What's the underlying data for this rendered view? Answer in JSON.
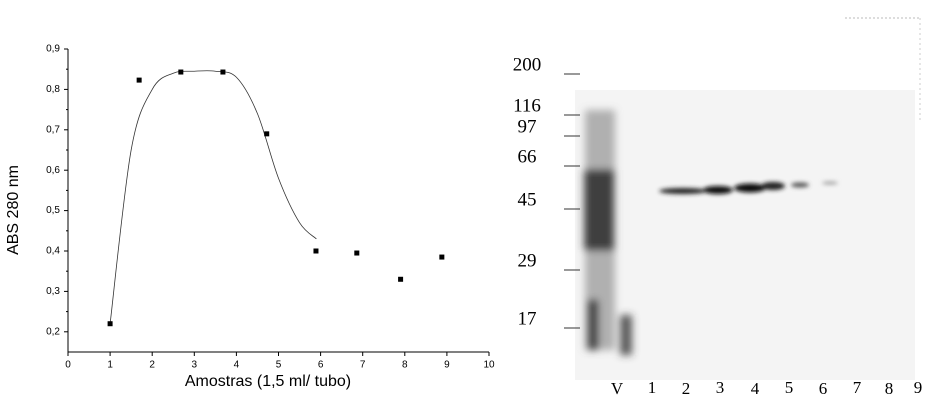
{
  "chart_data": {
    "type": "scatter",
    "x_label": "Amostras (1,5 ml/ tubo)",
    "y_label": "ABS 280 nm",
    "x": [
      1,
      1.69,
      2.68,
      3.68,
      4.72,
      5.89,
      6.86,
      7.9,
      8.88
    ],
    "values": [
      0.22,
      0.823,
      0.843,
      0.843,
      0.69,
      0.4,
      0.395,
      0.33,
      0.385
    ],
    "color": "#000000",
    "curve": {
      "x": [
        1,
        1.5,
        2,
        2.5,
        3,
        3.5,
        4,
        4.5,
        5,
        5.5,
        5.9
      ],
      "values": [
        0.22,
        0.65,
        0.8,
        0.84,
        0.845,
        0.845,
        0.83,
        0.74,
        0.58,
        0.47,
        0.43
      ]
    },
    "xlim": [
      0,
      10
    ],
    "ylim": [
      0.15,
      0.9
    ],
    "xticks": [
      0,
      1,
      2,
      3,
      4,
      5,
      6,
      7,
      8,
      9,
      10
    ],
    "yticks": [
      {
        "value": 0.2,
        "label": "0,2"
      },
      {
        "value": 0.3,
        "label": "0,3"
      },
      {
        "value": 0.4,
        "label": "0,4"
      },
      {
        "value": 0.5,
        "label": "0,5"
      },
      {
        "value": 0.6,
        "label": "0,6"
      },
      {
        "value": 0.7,
        "label": "0,7"
      },
      {
        "value": 0.8,
        "label": "0,8"
      },
      {
        "value": 0.9,
        "label": "0,9"
      }
    ]
  },
  "gel": {
    "markers": [
      "200",
      "116",
      "97",
      "66",
      "45",
      "29",
      "17"
    ],
    "lanes": [
      "V",
      "1",
      "2",
      "3",
      "4",
      "5",
      "6",
      "7",
      "8",
      "9"
    ]
  }
}
